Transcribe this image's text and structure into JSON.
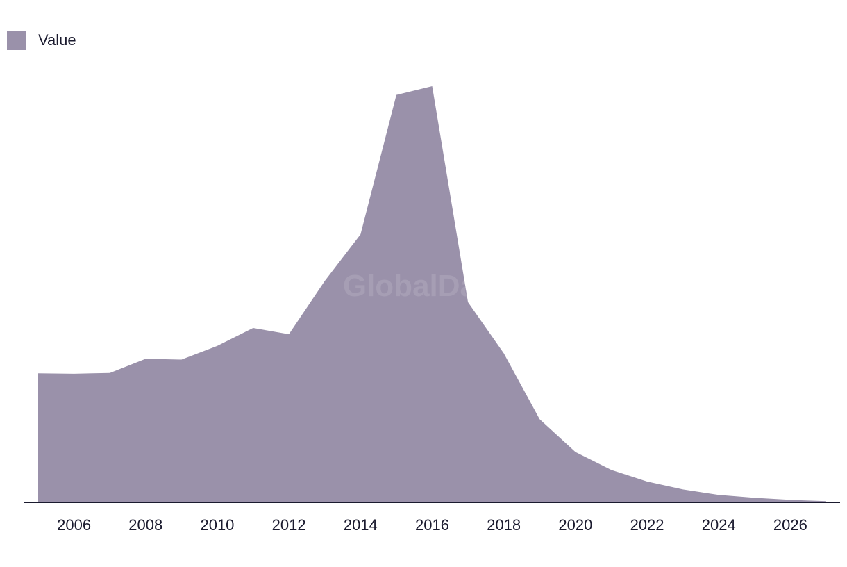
{
  "chart_data": {
    "type": "area",
    "x": [
      2005,
      2006,
      2007,
      2008,
      2009,
      2010,
      2011,
      2012,
      2013,
      2014,
      2015,
      2016,
      2017,
      2018,
      2019,
      2020,
      2021,
      2022,
      2023,
      2024,
      2025,
      2026,
      2027
    ],
    "series": [
      {
        "name": "Value",
        "color": "#9a91aa",
        "values": [
          31.0,
          30.9,
          31.1,
          34.5,
          34.3,
          37.6,
          41.9,
          40.4,
          53.2,
          64.4,
          97.9,
          100.0,
          48.1,
          35.8,
          20.0,
          12.1,
          7.8,
          5.0,
          3.1,
          1.8,
          1.1,
          0.6,
          0.3
        ]
      }
    ],
    "xticks": [
      "2006",
      "2008",
      "2010",
      "2012",
      "2014",
      "2016",
      "2018",
      "2020",
      "2022",
      "2024",
      "2026"
    ],
    "xlim": [
      2005,
      2027
    ],
    "ylim": [
      0,
      100
    ],
    "grid": false,
    "legend_position": "top-left",
    "watermark": "GlobalData"
  }
}
